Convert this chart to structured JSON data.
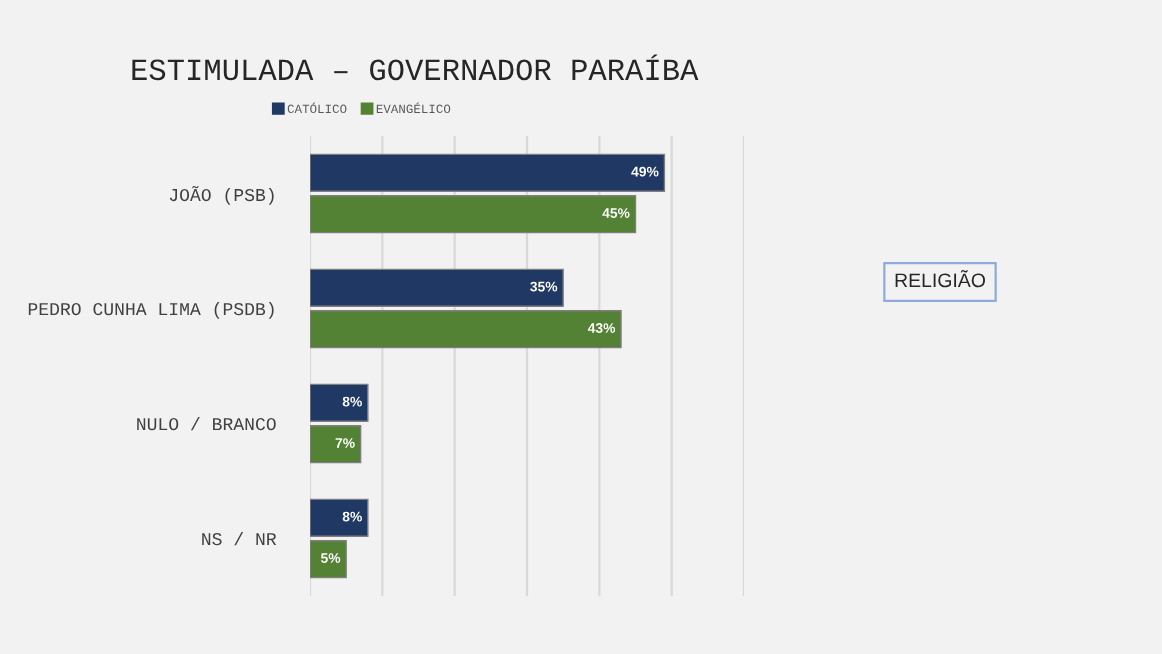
{
  "chart_data": {
    "type": "bar",
    "orientation": "horizontal",
    "title": "ESTIMULADA – GOVERNADOR PARAÍBA",
    "categories": [
      "JOÃO (PSB)",
      "PEDRO CUNHA LIMA (PSDB)",
      "NULO / BRANCO",
      "NS / NR"
    ],
    "series": [
      {
        "name": "CATÓLICO",
        "color": "#203864",
        "values": [
          49,
          35,
          8,
          8
        ],
        "value_labels": [
          "49%",
          "35%",
          "8%",
          "8%"
        ]
      },
      {
        "name": "EVANGÉLICO",
        "color": "#548235",
        "values": [
          45,
          43,
          7,
          5
        ],
        "value_labels": [
          "45%",
          "43%",
          "7%",
          "5%"
        ]
      }
    ],
    "xlim": [
      0,
      60
    ],
    "xticks": [
      {
        "value": 0,
        "label": null
      },
      {
        "value": 10,
        "label": null
      },
      {
        "value": 20,
        "label": null
      },
      {
        "value": 30,
        "label": null
      },
      {
        "value": 40,
        "label": null
      },
      {
        "value": 50,
        "label": null
      },
      {
        "value": 60,
        "label": null
      }
    ],
    "tick_labels": "y",
    "grid": "x",
    "legend": "top",
    "annotations": [
      "RELIGIÃO"
    ]
  }
}
